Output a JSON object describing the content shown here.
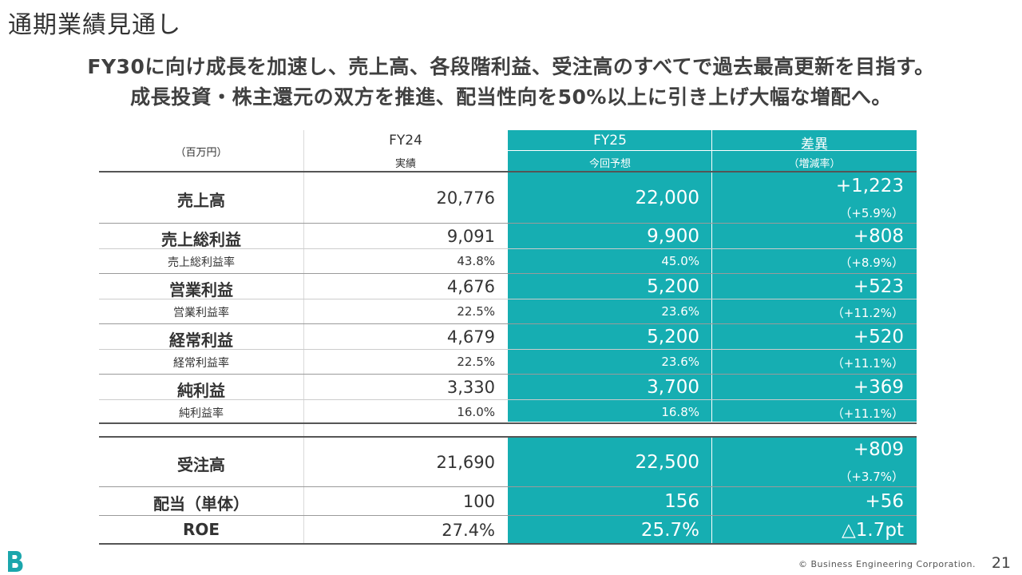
{
  "page": {
    "title": "通期業績見通し",
    "headline_1": "FY30に向け成長を加速し、売上高、各段階利益、受注高のすべてで過去最高更新を目指す。",
    "headline_2": "成長投資・株主還元の双方を推進、配当性向を50%以上に引き上げ大幅な増配へ。",
    "copyright": "© Business Engineering Corporation.",
    "page_number": "21"
  },
  "table": {
    "unit": "（百万円）",
    "col_fy24": "FY24",
    "col_fy24_sub": "実績",
    "col_fy25": "FY25",
    "col_fy25_sub": "今回予想",
    "col_diff": "差異",
    "col_diff_sub": "（増減率）",
    "rows": {
      "sales": {
        "label": "売上高",
        "fy24": "20,776",
        "fy25": "22,000",
        "diff": "+1,223",
        "rate": "（+5.9%）"
      },
      "gross": {
        "label": "売上総利益",
        "fy24": "9,091",
        "fy25": "9,900",
        "diff": "+808",
        "sub_label": "売上総利益率",
        "sub_fy24": "43.8%",
        "sub_fy25": "45.0%",
        "sub_diff": "（+8.9%）"
      },
      "op": {
        "label": "営業利益",
        "fy24": "4,676",
        "fy25": "5,200",
        "diff": "+523",
        "sub_label": "営業利益率",
        "sub_fy24": "22.5%",
        "sub_fy25": "23.6%",
        "sub_diff": "（+11.2%）"
      },
      "ord": {
        "label": "経常利益",
        "fy24": "4,679",
        "fy25": "5,200",
        "diff": "+520",
        "sub_label": "経常利益率",
        "sub_fy24": "22.5%",
        "sub_fy25": "23.6%",
        "sub_diff": "（+11.1%）"
      },
      "net": {
        "label": "純利益",
        "fy24": "3,330",
        "fy25": "3,700",
        "diff": "+369",
        "sub_label": "純利益率",
        "sub_fy24": "16.0%",
        "sub_fy25": "16.8%",
        "sub_diff": "（+11.1%）"
      },
      "orders": {
        "label": "受注高",
        "fy24": "21,690",
        "fy25": "22,500",
        "diff": "+809",
        "rate": "（+3.7%）"
      },
      "dividend": {
        "label": "配当（単体）",
        "fy24": "100",
        "fy25": "156",
        "diff": "+56"
      },
      "roe": {
        "label": "ROE",
        "fy24": "27.4%",
        "fy25": "25.7%",
        "diff": "△1.7pt"
      }
    }
  },
  "colors": {
    "accent": "#16AEB2",
    "logo": "#1BA6AC"
  },
  "icons": {
    "logo": "company-b-logo"
  }
}
